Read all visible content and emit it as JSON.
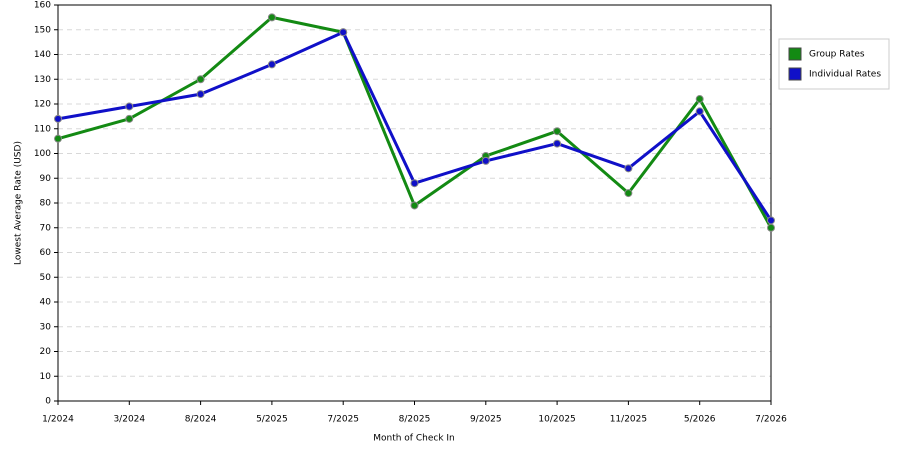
{
  "chart_data": {
    "type": "line",
    "x_label": "Month of Check In",
    "y_label": "Lowest Average Rate (USD)",
    "categories": [
      "1/2024",
      "3/2024",
      "8/2024",
      "5/2025",
      "7/2025",
      "8/2025",
      "9/2025",
      "10/2025",
      "11/2025",
      "5/2026",
      "7/2026"
    ],
    "series": [
      {
        "name": "Group Rates",
        "color": "#138a13",
        "values": [
          106,
          114,
          130,
          155,
          149,
          79,
          99,
          109,
          84,
          122,
          70
        ]
      },
      {
        "name": "Individual Rates",
        "color": "#1010c8",
        "values": [
          114,
          119,
          124,
          136,
          149,
          88,
          97,
          104,
          94,
          117,
          73
        ]
      }
    ],
    "ylim": [
      0,
      160
    ],
    "yticks": [
      0,
      10,
      20,
      30,
      40,
      50,
      60,
      70,
      80,
      90,
      100,
      110,
      120,
      130,
      140,
      150,
      160
    ],
    "grid": true,
    "legend": "right"
  }
}
